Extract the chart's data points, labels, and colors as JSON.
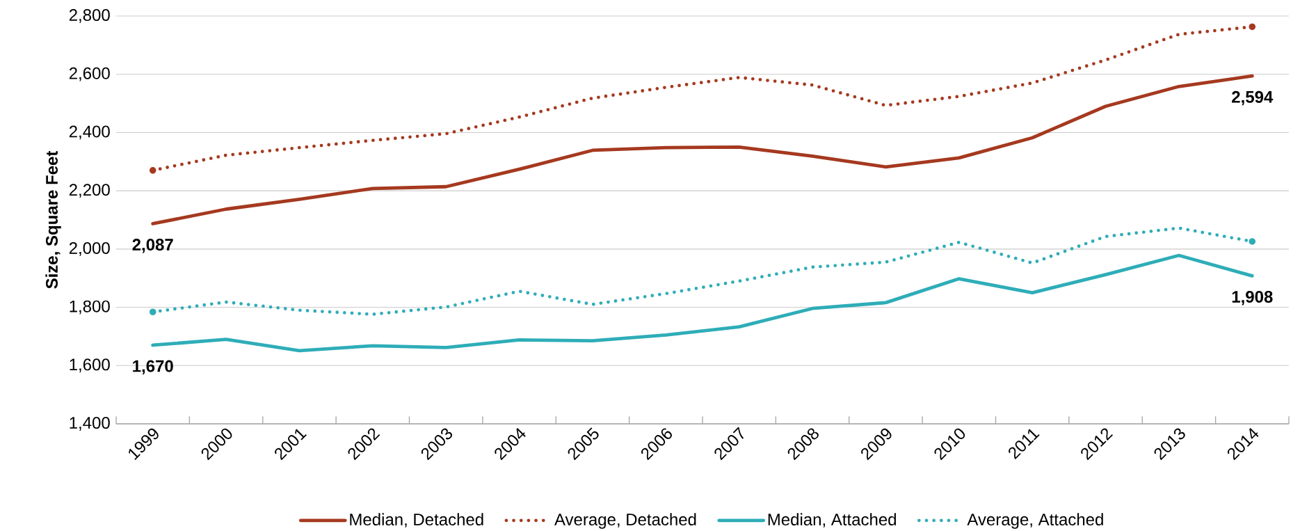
{
  "chart_data": {
    "type": "line",
    "ylabel": "Size, Square Feet",
    "categories": [
      "1999",
      "2000",
      "2001",
      "2002",
      "2003",
      "2004",
      "2005",
      "2006",
      "2007",
      "2008",
      "2009",
      "2010",
      "2011",
      "2012",
      "2013",
      "2014"
    ],
    "series": [
      {
        "name": "Median, Detached",
        "color": "#a5391f",
        "line_style": "solid",
        "values": [
          2087,
          2137,
          2171,
          2208,
          2214,
          2274,
          2339,
          2348,
          2350,
          2319,
          2282,
          2313,
          2382,
          2490,
          2558,
          2594
        ]
      },
      {
        "name": "Average, Detached",
        "color": "#a5391f",
        "line_style": "dotted",
        "values": [
          2270,
          2322,
          2348,
          2373,
          2396,
          2453,
          2518,
          2555,
          2589,
          2563,
          2493,
          2524,
          2570,
          2649,
          2737,
          2763
        ]
      },
      {
        "name": "Median, Attached",
        "color": "#2eadb8",
        "line_style": "solid",
        "values": [
          1670,
          1690,
          1651,
          1668,
          1662,
          1688,
          1685,
          1705,
          1733,
          1796,
          1816,
          1898,
          1850,
          1912,
          1978,
          1908
        ]
      },
      {
        "name": "Average, Attached",
        "color": "#2eadb8",
        "line_style": "dotted",
        "values": [
          1784,
          1818,
          1790,
          1776,
          1801,
          1855,
          1810,
          1847,
          1890,
          1938,
          1955,
          2023,
          1952,
          2043,
          2072,
          2026
        ]
      }
    ],
    "ylim": [
      1400,
      2800
    ],
    "yticks": [
      {
        "value": 1400,
        "label": "1,400"
      },
      {
        "value": 1600,
        "label": "1,600"
      },
      {
        "value": 1800,
        "label": "1,800"
      },
      {
        "value": 2000,
        "label": "2,000"
      },
      {
        "value": 2200,
        "label": "2,200"
      },
      {
        "value": 2400,
        "label": "2,400"
      },
      {
        "value": 2600,
        "label": "2,600"
      },
      {
        "value": 2800,
        "label": "2,800"
      }
    ],
    "annotations": [
      {
        "text": "2,087",
        "x": "1999",
        "y": 2087
      },
      {
        "text": "2,594",
        "x": "2014",
        "y": 2594
      },
      {
        "text": "1,670",
        "x": "1999",
        "y": 1670
      },
      {
        "text": "1,908",
        "x": "2014",
        "y": 1908
      }
    ],
    "grid": "y",
    "legend": "bottom"
  }
}
